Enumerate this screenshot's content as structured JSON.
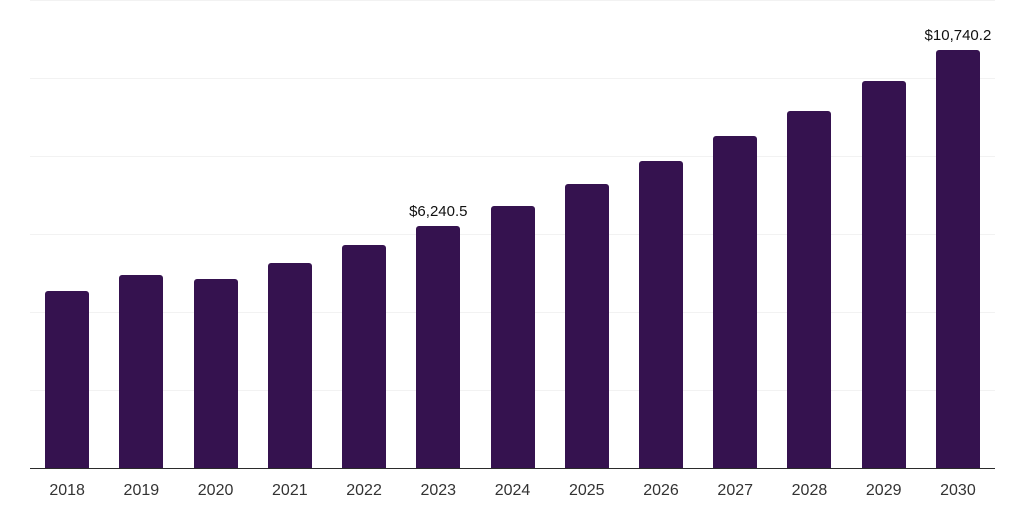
{
  "chart_data": {
    "type": "bar",
    "title": "",
    "xlabel": "",
    "ylabel": "",
    "categories": [
      "2018",
      "2019",
      "2020",
      "2021",
      "2022",
      "2023",
      "2024",
      "2025",
      "2026",
      "2027",
      "2028",
      "2029",
      "2030"
    ],
    "values": [
      4560,
      4975,
      4870,
      5280,
      5745,
      6240.5,
      6755,
      7320,
      7890,
      8535,
      9190,
      9945,
      10740.2
    ],
    "value_labels": {
      "2023": "$6,240.5",
      "2030": "$10,740.2"
    },
    "ylim": [
      0,
      12000
    ],
    "grid_step": 2000,
    "grid_visible": true,
    "y_tick_labels_visible": false,
    "legend_position": "none",
    "colors": {
      "bar": "#35124F",
      "gridline": "#F2F2F2",
      "axis_line": "#2B2B2B",
      "tick_label": "#333333",
      "data_label": "#111111",
      "background": "#FFFFFF"
    }
  }
}
